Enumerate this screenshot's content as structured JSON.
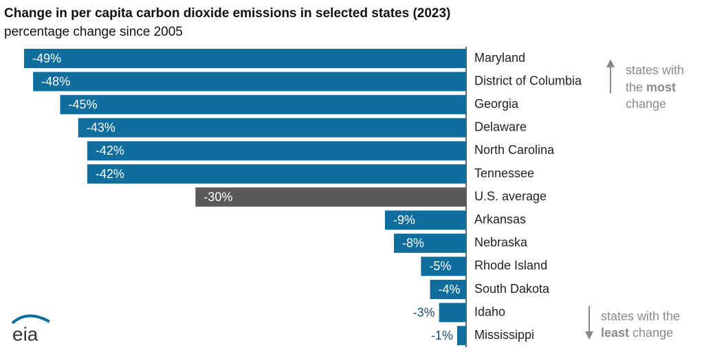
{
  "chart_data": {
    "type": "bar",
    "orientation": "horizontal",
    "title": "Change in per capita carbon dioxide emissions in selected states (2023)",
    "subtitle": "percentage change since 2005",
    "categories": [
      "Maryland",
      "District of Columbia",
      "Georgia",
      "Delaware",
      "North Carolina",
      "Tennessee",
      "U.S. average",
      "Arkansas",
      "Nebraska",
      "Rhode Island",
      "South Dakota",
      "Idaho",
      "Mississippi"
    ],
    "values": [
      -49,
      -48,
      -45,
      -43,
      -42,
      -42,
      -30,
      -9,
      -8,
      -5,
      -4,
      -3,
      -1
    ],
    "value_labels": [
      "-49%",
      "-48%",
      "-45%",
      "-43%",
      "-42%",
      "-42%",
      "-30%",
      "-9%",
      "-8%",
      "-5%",
      "-4%",
      "-3%",
      "-1%"
    ],
    "colors": [
      "#0f6e9e",
      "#0f6e9e",
      "#0f6e9e",
      "#0f6e9e",
      "#0f6e9e",
      "#0f6e9e",
      "#595959",
      "#0f6e9e",
      "#0f6e9e",
      "#0f6e9e",
      "#0f6e9e",
      "#0f6e9e",
      "#0f6e9e"
    ],
    "xlim": [
      -50,
      0
    ],
    "annotation_top": {
      "line1": "states with",
      "line2_pre": "the",
      "line2_bold": "most",
      "line3": "change"
    },
    "annotation_bottom": {
      "line1": "states with the",
      "line2_bold": "least",
      "line2_post": "change"
    },
    "logo": "eia"
  }
}
